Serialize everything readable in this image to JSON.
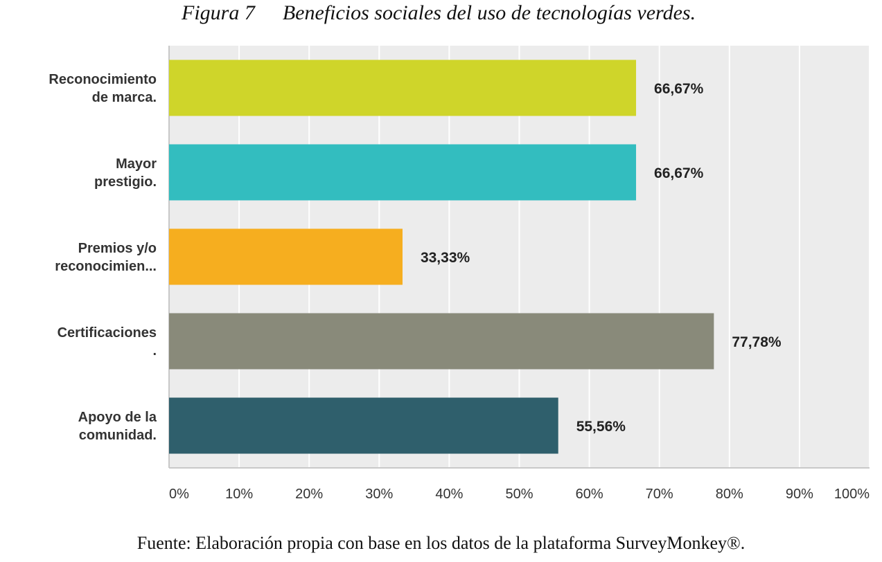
{
  "caption": {
    "figure_number": "Figura 7",
    "title": "Beneficios sociales del uso de tecnologías verdes."
  },
  "chart_data": {
    "type": "bar",
    "orientation": "horizontal",
    "categories": [
      [
        "Reconocimiento",
        "de marca."
      ],
      [
        "Mayor",
        "prestigio."
      ],
      [
        "Premios y/o",
        "reconocimien..."
      ],
      [
        "Certificaciones",
        "."
      ],
      [
        "Apoyo de la",
        "comunidad."
      ]
    ],
    "values": [
      66.67,
      66.67,
      33.33,
      77.78,
      55.56
    ],
    "value_labels": [
      "66,67%",
      "66,67%",
      "33,33%",
      "77,78%",
      "55,56%"
    ],
    "colors": [
      "#cfd52a",
      "#33bdbf",
      "#f6ae1f",
      "#898a7a",
      "#2f5f6c"
    ],
    "xlim": [
      0,
      100
    ],
    "x_ticks": [
      "0%",
      "10%",
      "20%",
      "30%",
      "40%",
      "50%",
      "60%",
      "70%",
      "80%",
      "90%",
      "100%"
    ],
    "grid": true,
    "background": "#ececec",
    "gridline_color": "#ffffff"
  },
  "source_note": "Fuente: Elaboración propia con base en los datos de la plataforma SurveyMonkey®."
}
